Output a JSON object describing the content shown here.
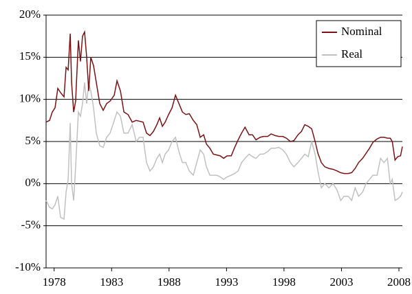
{
  "chart_data": {
    "type": "line",
    "x": [
      1977.3,
      1977.6,
      1977.84,
      1978.08,
      1978.32,
      1978.56,
      1978.86,
      1979.04,
      1979.22,
      1979.4,
      1979.52,
      1979.7,
      1979.87,
      1980.11,
      1980.29,
      1980.47,
      1980.65,
      1980.83,
      1981.01,
      1981.19,
      1981.43,
      1981.67,
      1981.97,
      1982.27,
      1982.57,
      1982.87,
      1983.23,
      1983.47,
      1983.77,
      1984.07,
      1984.43,
      1984.79,
      1985.14,
      1985.44,
      1985.74,
      1986.04,
      1986.34,
      1986.64,
      1986.94,
      1987.18,
      1987.42,
      1987.66,
      1987.96,
      1988.26,
      1988.56,
      1988.86,
      1989.16,
      1989.46,
      1989.76,
      1990.11,
      1990.41,
      1990.71,
      1991.01,
      1991.25,
      1991.55,
      1991.85,
      1992.15,
      1992.45,
      1992.75,
      1993.05,
      1993.41,
      1993.71,
      1994.01,
      1994.31,
      1994.61,
      1994.96,
      1995.26,
      1995.56,
      1995.92,
      1996.22,
      1996.58,
      1996.88,
      1997.24,
      1997.54,
      1997.9,
      1998.2,
      1998.56,
      1998.86,
      1999.22,
      1999.52,
      1999.81,
      2000.11,
      2000.41,
      2000.71,
      2000.95,
      2001.25,
      2001.55,
      2001.91,
      2002.27,
      2002.63,
      2002.93,
      2003.23,
      2003.59,
      2003.89,
      2004.19,
      2004.49,
      2004.84,
      2005.14,
      2005.44,
      2005.74,
      2006.1,
      2006.4,
      2006.7,
      2007.0,
      2007.24,
      2007.42,
      2007.66,
      2007.9,
      2008.14,
      2008.3
    ],
    "series": [
      {
        "name": "Nominal",
        "color": "#7b1113",
        "values": [
          7.3,
          7.5,
          8.5,
          9,
          11.3,
          10.8,
          10.3,
          13.8,
          13.5,
          17.8,
          12,
          8.5,
          9.8,
          17,
          14.5,
          17.5,
          18,
          15,
          11,
          15,
          14,
          12,
          9.5,
          8.7,
          9.5,
          9.8,
          10.5,
          12.2,
          11,
          8.5,
          8.2,
          7.3,
          7.5,
          7.4,
          7.3,
          6,
          5.7,
          6.2,
          7,
          7.8,
          6.8,
          7.3,
          8.2,
          9,
          10.5,
          9.5,
          8.5,
          8.2,
          8.3,
          7.5,
          7,
          5.5,
          5.8,
          4.7,
          4.2,
          3.5,
          3.4,
          3.3,
          3.0,
          3.3,
          3.3,
          4.3,
          5.2,
          6.0,
          6.7,
          5.8,
          5.8,
          5.2,
          5.5,
          5.6,
          5.6,
          5.9,
          5.7,
          5.6,
          5.6,
          5.4,
          5.0,
          5.1,
          5.8,
          6.2,
          7.0,
          6.8,
          6.5,
          5.0,
          3.6,
          2.5,
          2.0,
          1.8,
          1.7,
          1.5,
          1.3,
          1.2,
          1.2,
          1.3,
          1.8,
          2.5,
          3.0,
          3.6,
          4.2,
          4.9,
          5.3,
          5.5,
          5.5,
          5.4,
          5.4,
          5.0,
          2.8,
          3.2,
          3.3,
          4.4
        ]
      },
      {
        "name": "Real",
        "color": "#c0c0c0",
        "values": [
          -2,
          -2.8,
          -3,
          -2.5,
          -1.5,
          -4,
          -4.2,
          -1,
          0.5,
          7.2,
          0,
          -2,
          2,
          8.5,
          8,
          9.5,
          12,
          9.5,
          12,
          11,
          9,
          6,
          4.5,
          4.3,
          5.5,
          6,
          7.5,
          8.5,
          8,
          6,
          6,
          7,
          5,
          5.5,
          5.5,
          2.5,
          1.5,
          2,
          3,
          3.5,
          2.5,
          3.5,
          4,
          5,
          5.5,
          3.8,
          2.5,
          2.5,
          1.5,
          1.0,
          2.5,
          4,
          3.5,
          2,
          1,
          1,
          1,
          0.8,
          0.5,
          0.8,
          1,
          1.2,
          1.5,
          2.5,
          3,
          3.5,
          3.2,
          3,
          3.5,
          3.5,
          3.8,
          4.2,
          4.2,
          4.3,
          4,
          3.5,
          2.5,
          2,
          2.5,
          3,
          3.5,
          3.2,
          5,
          3.5,
          1.5,
          -0.5,
          0,
          -0.5,
          0,
          -0.8,
          -2,
          -1.5,
          -1.5,
          -2,
          -0.5,
          -1.5,
          -1,
          0,
          0.5,
          1,
          1,
          3,
          2.5,
          3,
          0,
          0.5,
          -2,
          -1.8,
          -1.5,
          -1
        ]
      }
    ],
    "xlim": [
      1977.3,
      2008.3
    ],
    "xticks": [
      1978,
      1983,
      1988,
      1993,
      1998,
      2003,
      2008
    ],
    "ylim": [
      -10,
      20
    ],
    "yticks": [
      {
        "value": -10,
        "label": "-10%"
      },
      {
        "value": -5,
        "label": "-5%"
      },
      {
        "value": 0,
        "label": "0%"
      },
      {
        "value": 5,
        "label": "5%"
      },
      {
        "value": 10,
        "label": "10%"
      },
      {
        "value": 15,
        "label": "15%"
      },
      {
        "value": 20,
        "label": "20%"
      }
    ],
    "grid": true,
    "legend": "upper right"
  }
}
